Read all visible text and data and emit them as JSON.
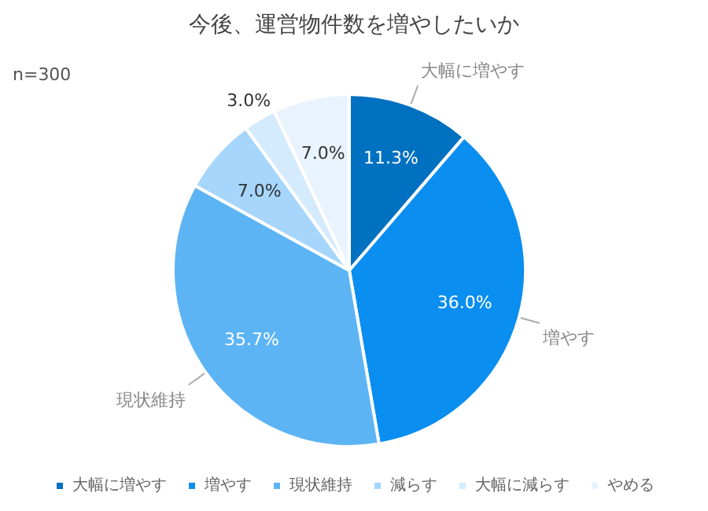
{
  "chart_data": {
    "type": "pie",
    "title": "今後、運営物件数を増やしたいか",
    "annotations": [
      "n=300"
    ],
    "categories": [
      "大幅に増やす",
      "増やす",
      "現状維持",
      "減らす",
      "大幅に減らす",
      "やめる"
    ],
    "values": [
      11.3,
      36.0,
      35.7,
      7.0,
      3.0,
      7.0
    ],
    "value_labels": [
      "11.3%",
      "36.0%",
      "35.7%",
      "7.0%",
      "3.0%",
      "7.0%"
    ],
    "colors": [
      "#0070c0",
      "#0a8ef0",
      "#5cb4f5",
      "#a6d6fb",
      "#d4ebfd",
      "#e9f3fd"
    ],
    "legend": "bottom"
  }
}
